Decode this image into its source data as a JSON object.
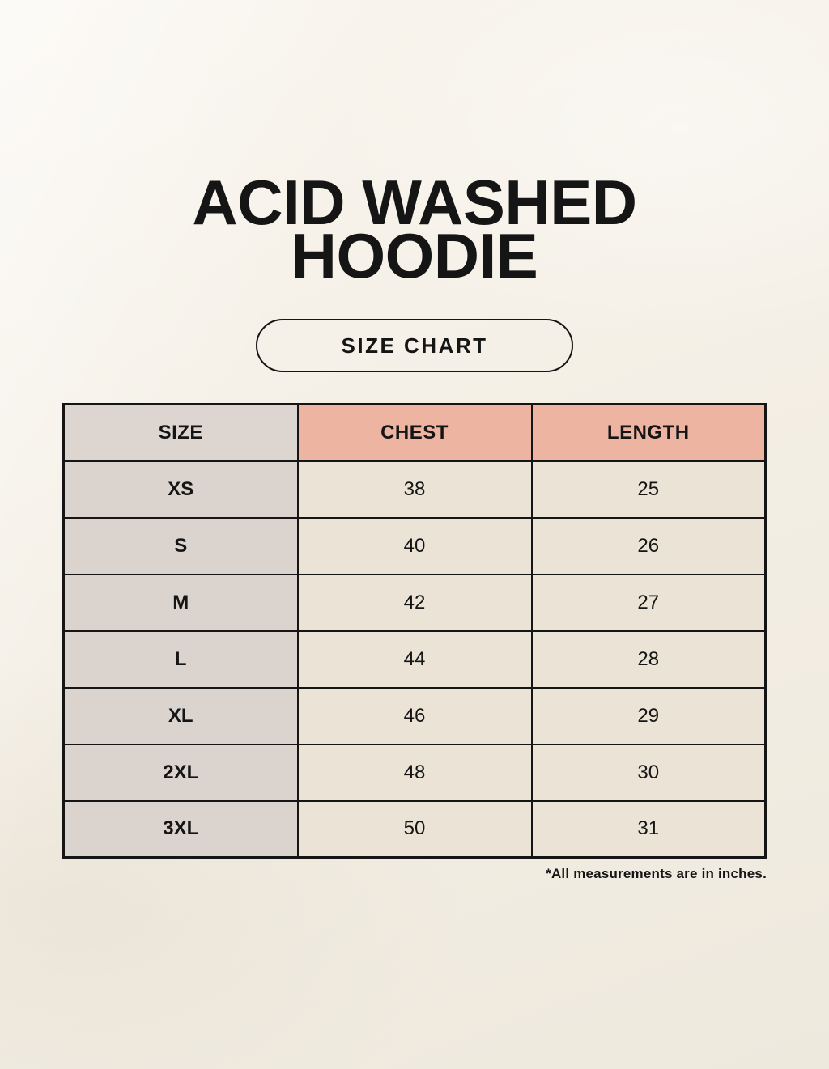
{
  "title": {
    "line1": "ACID WASHED",
    "line2": "HOODIE"
  },
  "badge": {
    "label": "SIZE CHART"
  },
  "footnote": "*All measurements are in inches.",
  "chart_data": {
    "type": "table",
    "title": "ACID WASHED HOODIE SIZE CHART",
    "columns": [
      "SIZE",
      "CHEST",
      "LENGTH"
    ],
    "rows": [
      [
        "XS",
        "38",
        "25"
      ],
      [
        "S",
        "40",
        "26"
      ],
      [
        "M",
        "42",
        "27"
      ],
      [
        "L",
        "44",
        "28"
      ],
      [
        "XL",
        "46",
        "29"
      ],
      [
        "2XL",
        "48",
        "30"
      ],
      [
        "3XL",
        "50",
        "31"
      ]
    ],
    "units": "inches"
  },
  "colors": {
    "page_background": "#f4efe6",
    "header_size_bg": "#ddd6d0",
    "header_measure_bg": "#eeb4a2",
    "size_column_bg": "#dbd4ce",
    "value_cell_bg": "#ebe4d6",
    "table_border": "#151515",
    "text": "#151515"
  }
}
